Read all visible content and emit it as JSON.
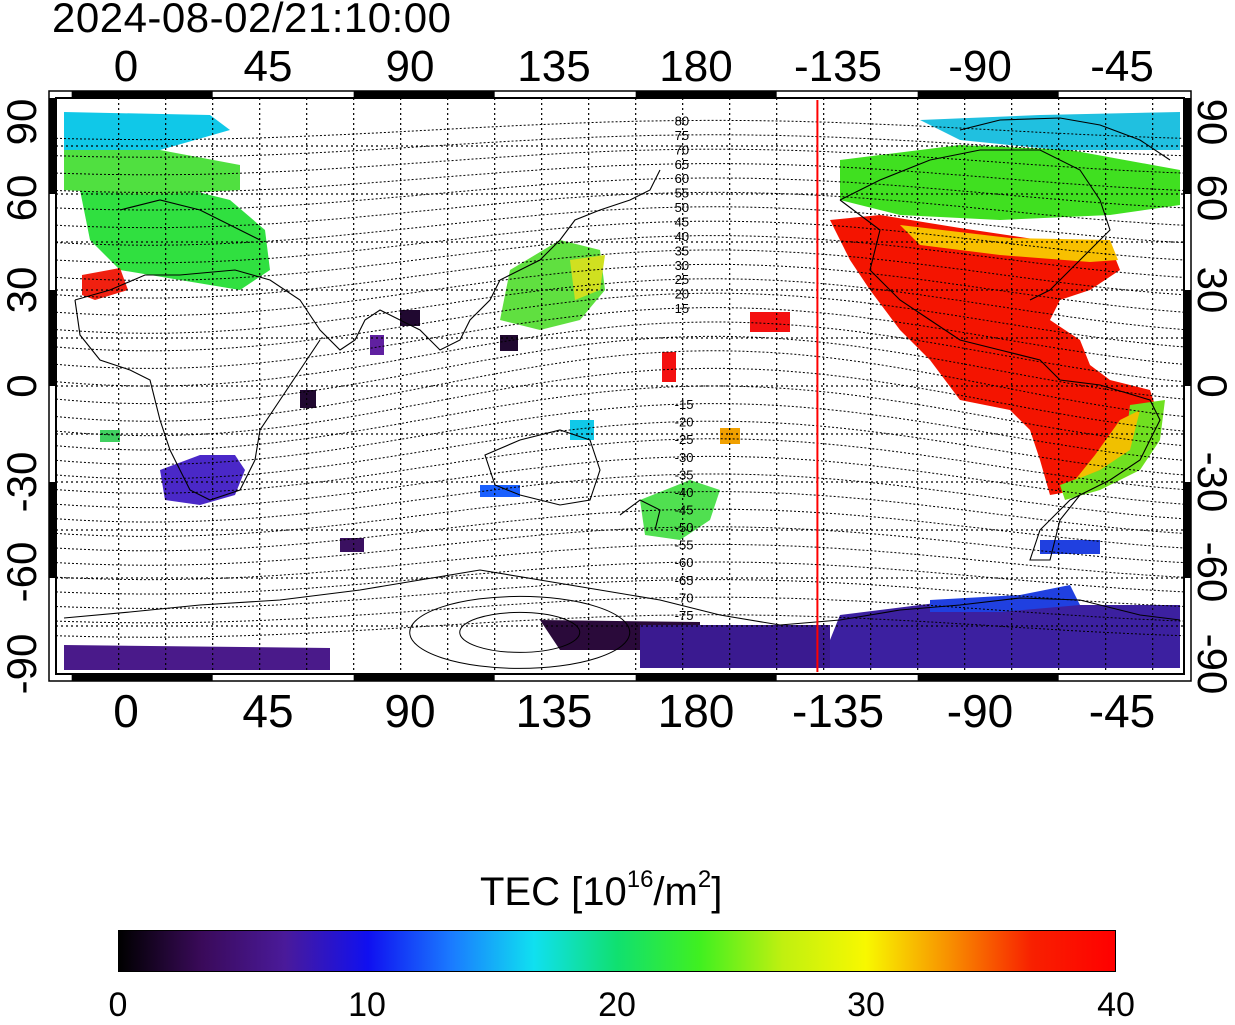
{
  "timestamp": "2024-08-02/21:10:00",
  "x_ticks": [
    "0",
    "45",
    "90",
    "135",
    "180",
    "-135",
    "-90",
    "-45"
  ],
  "y_ticks_left": [
    "90",
    "60",
    "30",
    "0",
    "-30",
    "-60",
    "-90"
  ],
  "y_ticks_right": [
    "90",
    "60",
    "30",
    "0",
    "-30",
    "-60",
    "-90"
  ],
  "colorbar": {
    "title_main": "TEC  [10",
    "title_sup1": "16",
    "title_mid": "/m",
    "title_sup2": "2",
    "title_end": "]",
    "ticks": [
      "0",
      "10",
      "20",
      "30",
      "40"
    ],
    "colors": [
      "#000000",
      "#3a0a5a",
      "#4a1a9a",
      "#1010f0",
      "#1a7aff",
      "#10e0f0",
      "#10e070",
      "#40f020",
      "#c0f010",
      "#f8f800",
      "#f89000",
      "#f82000",
      "#ff0000"
    ]
  },
  "map_data": {
    "region": "global",
    "central_longitude": 20,
    "lon_range": [
      -20,
      340
    ],
    "lat_range": [
      -90,
      90
    ],
    "terminator_longitude": -137,
    "contour_labels": [
      "80",
      "75",
      "70",
      "65",
      "60",
      "55",
      "50",
      "45",
      "40",
      "35",
      "30",
      "25",
      "20",
      "15",
      "-15",
      "-20",
      "-25",
      "-30",
      "-35",
      "-40",
      "-45",
      "-50",
      "-55",
      "-60",
      "-65",
      "-70",
      "-75"
    ]
  },
  "colors": {
    "terminator": "#ff0000",
    "frame": "#000000",
    "grid": "#000000"
  }
}
